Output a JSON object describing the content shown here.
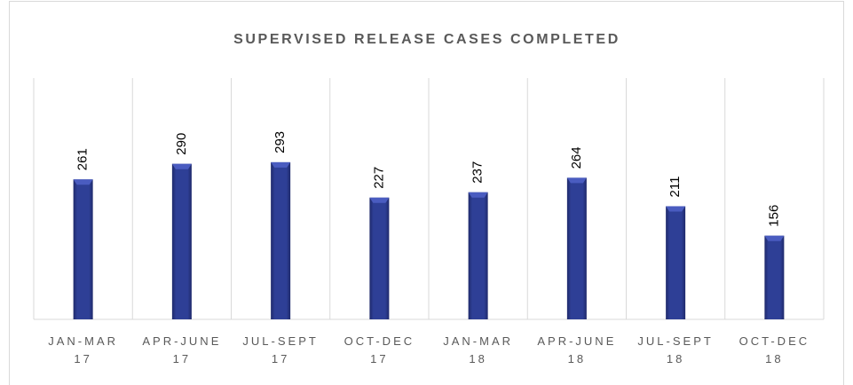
{
  "chart_data": {
    "type": "bar",
    "title": "SUPERVISED RELEASE CASES COMPLETED",
    "categories": [
      "JAN-MAR 17",
      "APR-JUNE 17",
      "JUL-SEPT 17",
      "OCT-DEC 17",
      "JAN-MAR 18",
      "APR-JUNE 18",
      "JUL-SEPT 18",
      "OCT-DEC 18"
    ],
    "values": [
      261,
      290,
      293,
      227,
      237,
      264,
      211,
      156
    ],
    "color": "#2e3f96",
    "ylim": [
      0,
      450
    ],
    "grid": true
  }
}
